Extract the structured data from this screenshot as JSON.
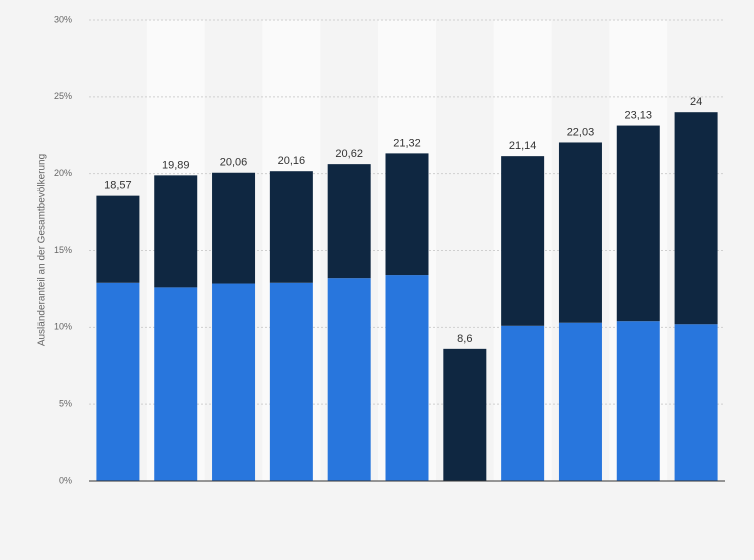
{
  "chart_data": {
    "type": "stacked_bar",
    "y_axis_label": "Ausländeranteil an der Gesamtbevölkerung",
    "categories": [
      null,
      null,
      null,
      null,
      null,
      null,
      null,
      null,
      null,
      null,
      null
    ],
    "series": [
      {
        "color": "#2876dd",
        "values": [
          12.9,
          12.6,
          12.85,
          12.9,
          13.2,
          13.4,
          0,
          10.1,
          10.3,
          10.4,
          10.2
        ]
      },
      {
        "color": "#0f2741",
        "values": [
          5.67,
          7.29,
          7.21,
          7.26,
          7.42,
          7.92,
          8.6,
          11.04,
          11.73,
          12.73,
          13.8
        ]
      }
    ],
    "totals": [
      18.57,
      19.89,
      20.06,
      20.16,
      20.62,
      21.32,
      8.6,
      21.14,
      22.03,
      23.13,
      24
    ],
    "total_labels": [
      "18,57",
      "19,89",
      "20,06",
      "20,16",
      "20,62",
      "21,32",
      "8,6",
      "21,14",
      "22,03",
      "23,13",
      "24"
    ],
    "ylim": [
      0,
      30
    ],
    "yticks": [
      {
        "value": 0,
        "label": "0%"
      },
      {
        "value": 5,
        "label": "5%"
      },
      {
        "value": 10,
        "label": "10%"
      },
      {
        "value": 15,
        "label": "15%"
      },
      {
        "value": 20,
        "label": "20%"
      },
      {
        "value": 25,
        "label": "25%"
      },
      {
        "value": 30,
        "label": "30%"
      }
    ],
    "grid": true
  }
}
